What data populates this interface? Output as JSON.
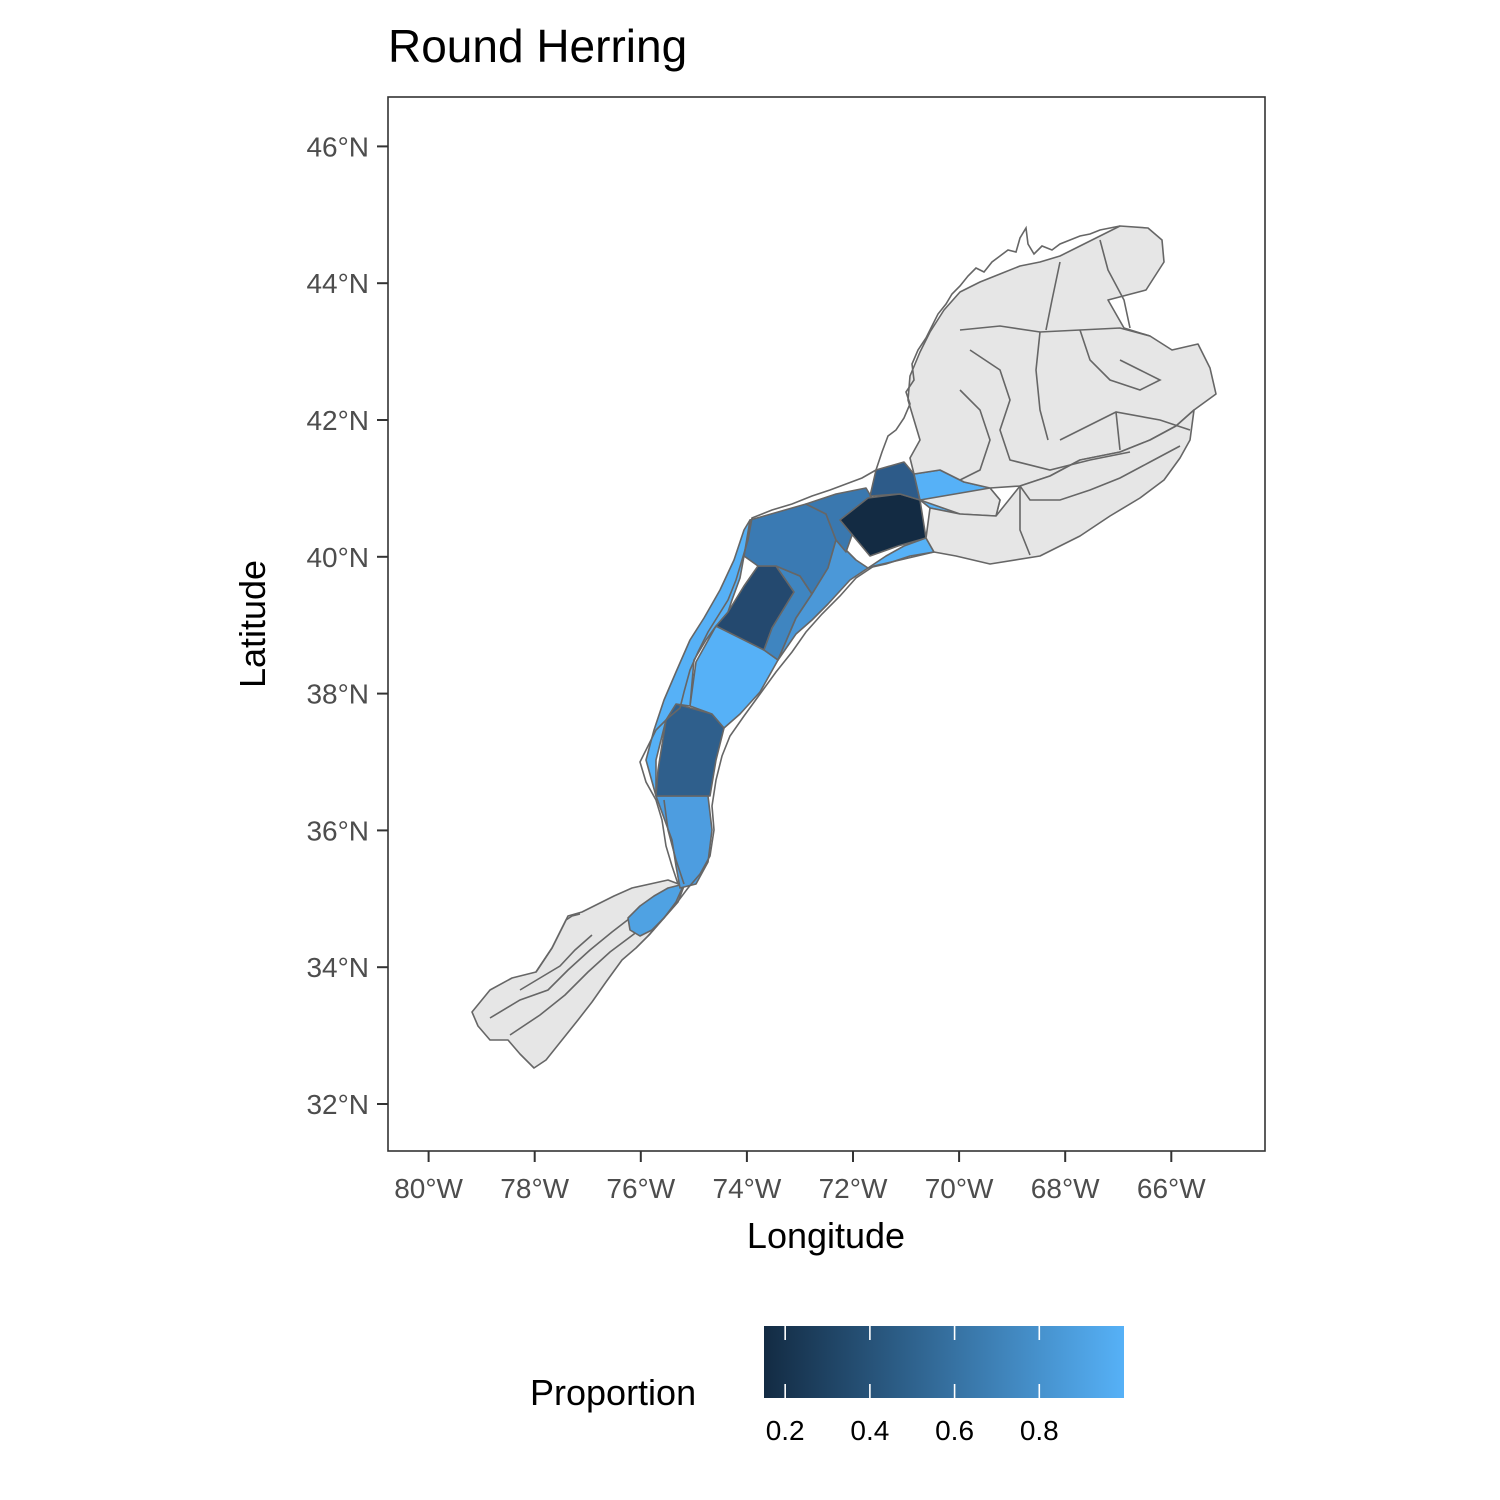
{
  "title": "Round Herring",
  "x_axis": {
    "title": "Longitude",
    "ticks": [
      {
        "value": -80,
        "label": "80°W"
      },
      {
        "value": -78,
        "label": "78°W"
      },
      {
        "value": -76,
        "label": "76°W"
      },
      {
        "value": -74,
        "label": "74°W"
      },
      {
        "value": -72,
        "label": "72°W"
      },
      {
        "value": -70,
        "label": "70°W"
      },
      {
        "value": -68,
        "label": "68°W"
      },
      {
        "value": -66,
        "label": "66°W"
      }
    ]
  },
  "y_axis": {
    "title": "Latitude",
    "ticks": [
      {
        "value": 32,
        "label": "32°N"
      },
      {
        "value": 34,
        "label": "34°N"
      },
      {
        "value": 36,
        "label": "36°N"
      },
      {
        "value": 38,
        "label": "38°N"
      },
      {
        "value": 40,
        "label": "40°N"
      },
      {
        "value": 42,
        "label": "42°N"
      },
      {
        "value": 44,
        "label": "44°N"
      },
      {
        "value": 46,
        "label": "46°N"
      }
    ]
  },
  "legend": {
    "title": "Proportion",
    "position": "bottom",
    "min": 0.15,
    "max": 1.0,
    "low_color": "#132b43",
    "high_color": "#56b1f7",
    "ticks": [
      {
        "value": 0.2,
        "label": "0.2"
      },
      {
        "value": 0.4,
        "label": "0.4"
      },
      {
        "value": 0.6,
        "label": "0.6"
      },
      {
        "value": 0.8,
        "label": "0.8"
      }
    ]
  },
  "colors": {
    "no_data_fill": "#e6e6e6",
    "region_border": "#666666",
    "panel_border": "#333333"
  }
}
